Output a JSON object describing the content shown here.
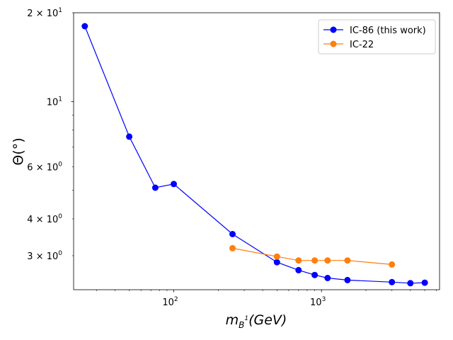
{
  "chart_data": {
    "type": "line",
    "xscale": "log",
    "yscale": "log",
    "xlabel_main": "m",
    "xlabel_sub": "B",
    "xlabel_sup": "1",
    "xlabel_rest": "(GeV)",
    "ylabel": "Θ(°)",
    "xlim": [
      21,
      6300
    ],
    "ylim": [
      2.3,
      20
    ],
    "x_ticks": [
      {
        "value": 100,
        "base": "10",
        "exp": "2"
      },
      {
        "value": 1000,
        "base": "10",
        "exp": "3"
      }
    ],
    "y_ticks": [
      {
        "value": 20,
        "label_base": "2 × 10",
        "label_exp": "1"
      },
      {
        "value": 10,
        "label_base": "10",
        "label_exp": "1"
      },
      {
        "value": 6,
        "label_base": "6 × 10",
        "label_exp": "0"
      },
      {
        "value": 4,
        "label_base": "4 × 10",
        "label_exp": "0"
      },
      {
        "value": 3,
        "label_base": "3 × 10",
        "label_exp": "0"
      }
    ],
    "legend_position": "top-right",
    "series": [
      {
        "name": "IC-86 (this work)",
        "color": "#0000ff",
        "x": [
          25,
          50,
          75,
          100,
          250,
          500,
          700,
          900,
          1100,
          1500,
          3000,
          4000,
          5000
        ],
        "y": [
          18.0,
          7.6,
          5.1,
          5.25,
          3.55,
          2.85,
          2.68,
          2.58,
          2.52,
          2.48,
          2.44,
          2.42,
          2.43
        ]
      },
      {
        "name": "IC-22",
        "color": "#ff7f0e",
        "x": [
          250,
          500,
          700,
          900,
          1100,
          1500,
          3000
        ],
        "y": [
          3.18,
          2.98,
          2.89,
          2.89,
          2.89,
          2.89,
          2.8
        ]
      }
    ]
  }
}
